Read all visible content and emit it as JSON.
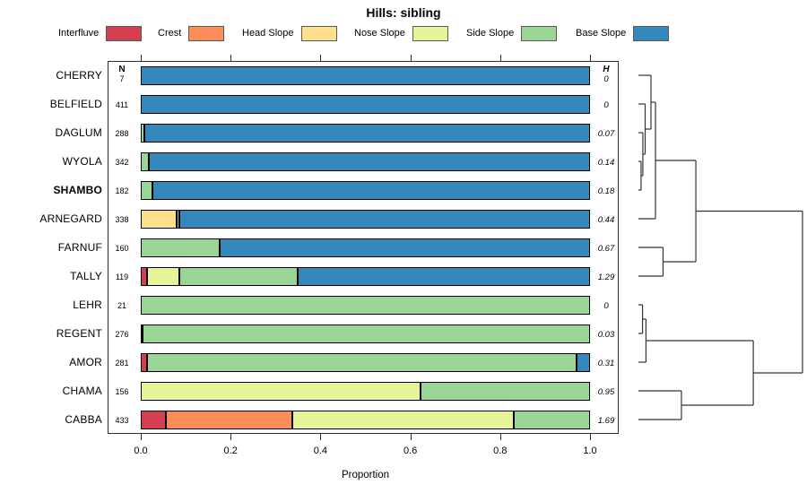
{
  "title": "Hills: sibling",
  "legend": {
    "items": [
      {
        "label": "Interfluve",
        "color": "#D53E4F"
      },
      {
        "label": "Crest",
        "color": "#FC8D59"
      },
      {
        "label": "Head Slope",
        "color": "#FEE08B"
      },
      {
        "label": "Nose Slope",
        "color": "#E6F598"
      },
      {
        "label": "Side Slope",
        "color": "#99D594"
      },
      {
        "label": "Base Slope",
        "color": "#3288BD"
      }
    ]
  },
  "columns": {
    "n_header": "N",
    "h_header": "H"
  },
  "axis": {
    "label": "Proportion",
    "ticks": [
      "0.0",
      "0.2",
      "0.4",
      "0.6",
      "0.8",
      "1.0"
    ],
    "tick_values": [
      0,
      0.2,
      0.4,
      0.6,
      0.8,
      1.0
    ]
  },
  "chart_data": {
    "type": "bar",
    "orientation": "horizontal",
    "stacked": true,
    "xlabel": "Proportion",
    "xlim": [
      0,
      1
    ],
    "categories": [
      "Interfluve",
      "Crest",
      "Head Slope",
      "Nose Slope",
      "Side Slope",
      "Base Slope"
    ],
    "series": [
      {
        "name": "CHERRY",
        "n": "7",
        "h": "0",
        "bold": false,
        "segments": [
          [
            "Base Slope",
            1.0
          ]
        ]
      },
      {
        "name": "BELFIELD",
        "n": "411",
        "h": "0",
        "bold": false,
        "segments": [
          [
            "Base Slope",
            1.0
          ]
        ]
      },
      {
        "name": "DAGLUM",
        "n": "288",
        "h": "0.07",
        "bold": false,
        "segments": [
          [
            "Side Slope",
            0.008
          ],
          [
            "Base Slope",
            0.992
          ]
        ]
      },
      {
        "name": "WYOLA",
        "n": "342",
        "h": "0.14",
        "bold": false,
        "segments": [
          [
            "Side Slope",
            0.018
          ],
          [
            "Base Slope",
            0.982
          ]
        ]
      },
      {
        "name": "SHAMBO",
        "n": "182",
        "h": "0.18",
        "bold": true,
        "segments": [
          [
            "Side Slope",
            0.026
          ],
          [
            "Base Slope",
            0.974
          ]
        ]
      },
      {
        "name": "ARNEGARD",
        "n": "338",
        "h": "0.44",
        "bold": false,
        "segments": [
          [
            "Head Slope",
            0.08
          ],
          [
            "Side Slope",
            0.006
          ],
          [
            "Base Slope",
            0.914
          ]
        ]
      },
      {
        "name": "FARNUF",
        "n": "160",
        "h": "0.67",
        "bold": false,
        "segments": [
          [
            "Side Slope",
            0.175
          ],
          [
            "Base Slope",
            0.825
          ]
        ]
      },
      {
        "name": "TALLY",
        "n": "119",
        "h": "1.29",
        "bold": false,
        "segments": [
          [
            "Interfluve",
            0.014
          ],
          [
            "Nose Slope",
            0.072
          ],
          [
            "Side Slope",
            0.264
          ],
          [
            "Base Slope",
            0.65
          ]
        ]
      },
      {
        "name": "LEHR",
        "n": "21",
        "h": "0",
        "bold": false,
        "segments": [
          [
            "Side Slope",
            1.0
          ]
        ]
      },
      {
        "name": "REGENT",
        "n": "276",
        "h": "0.03",
        "bold": false,
        "segments": [
          [
            "Interfluve",
            0.004
          ],
          [
            "Side Slope",
            0.996
          ]
        ]
      },
      {
        "name": "AMOR",
        "n": "281",
        "h": "0.31",
        "bold": false,
        "segments": [
          [
            "Interfluve",
            0.013
          ],
          [
            "Side Slope",
            0.957
          ],
          [
            "Base Slope",
            0.03
          ]
        ]
      },
      {
        "name": "CHAMA",
        "n": "156",
        "h": "0.95",
        "bold": false,
        "segments": [
          [
            "Nose Slope",
            0.623
          ],
          [
            "Side Slope",
            0.377
          ]
        ]
      },
      {
        "name": "CABBA",
        "n": "433",
        "h": "1.69",
        "bold": false,
        "segments": [
          [
            "Interfluve",
            0.056
          ],
          [
            "Crest",
            0.281
          ],
          [
            "Nose Slope",
            0.494
          ],
          [
            "Side Slope",
            0.169
          ]
        ]
      }
    ]
  },
  "dendrogram": {
    "merges": [
      {
        "a": "leaf:3",
        "b": "leaf:4",
        "height": 0.016
      },
      {
        "a": "leaf:2",
        "b": "node:0",
        "height": 0.027
      },
      {
        "a": "leaf:1",
        "b": "node:1",
        "height": 0.041
      },
      {
        "a": "leaf:0",
        "b": "node:2",
        "height": 0.0765
      },
      {
        "a": "node:3",
        "b": "leaf:5",
        "height": 0.104
      },
      {
        "a": "leaf:6",
        "b": "leaf:7",
        "height": 0.15
      },
      {
        "a": "node:4",
        "b": "node:5",
        "height": 0.35
      },
      {
        "a": "leaf:8",
        "b": "leaf:9",
        "height": 0.025
      },
      {
        "a": "node:7",
        "b": "leaf:10",
        "height": 0.046
      },
      {
        "a": "leaf:11",
        "b": "leaf:12",
        "height": 0.262
      },
      {
        "a": "node:8",
        "b": "node:9",
        "height": 0.7
      },
      {
        "a": "node:6",
        "b": "node:10",
        "height": 1.0
      }
    ]
  }
}
